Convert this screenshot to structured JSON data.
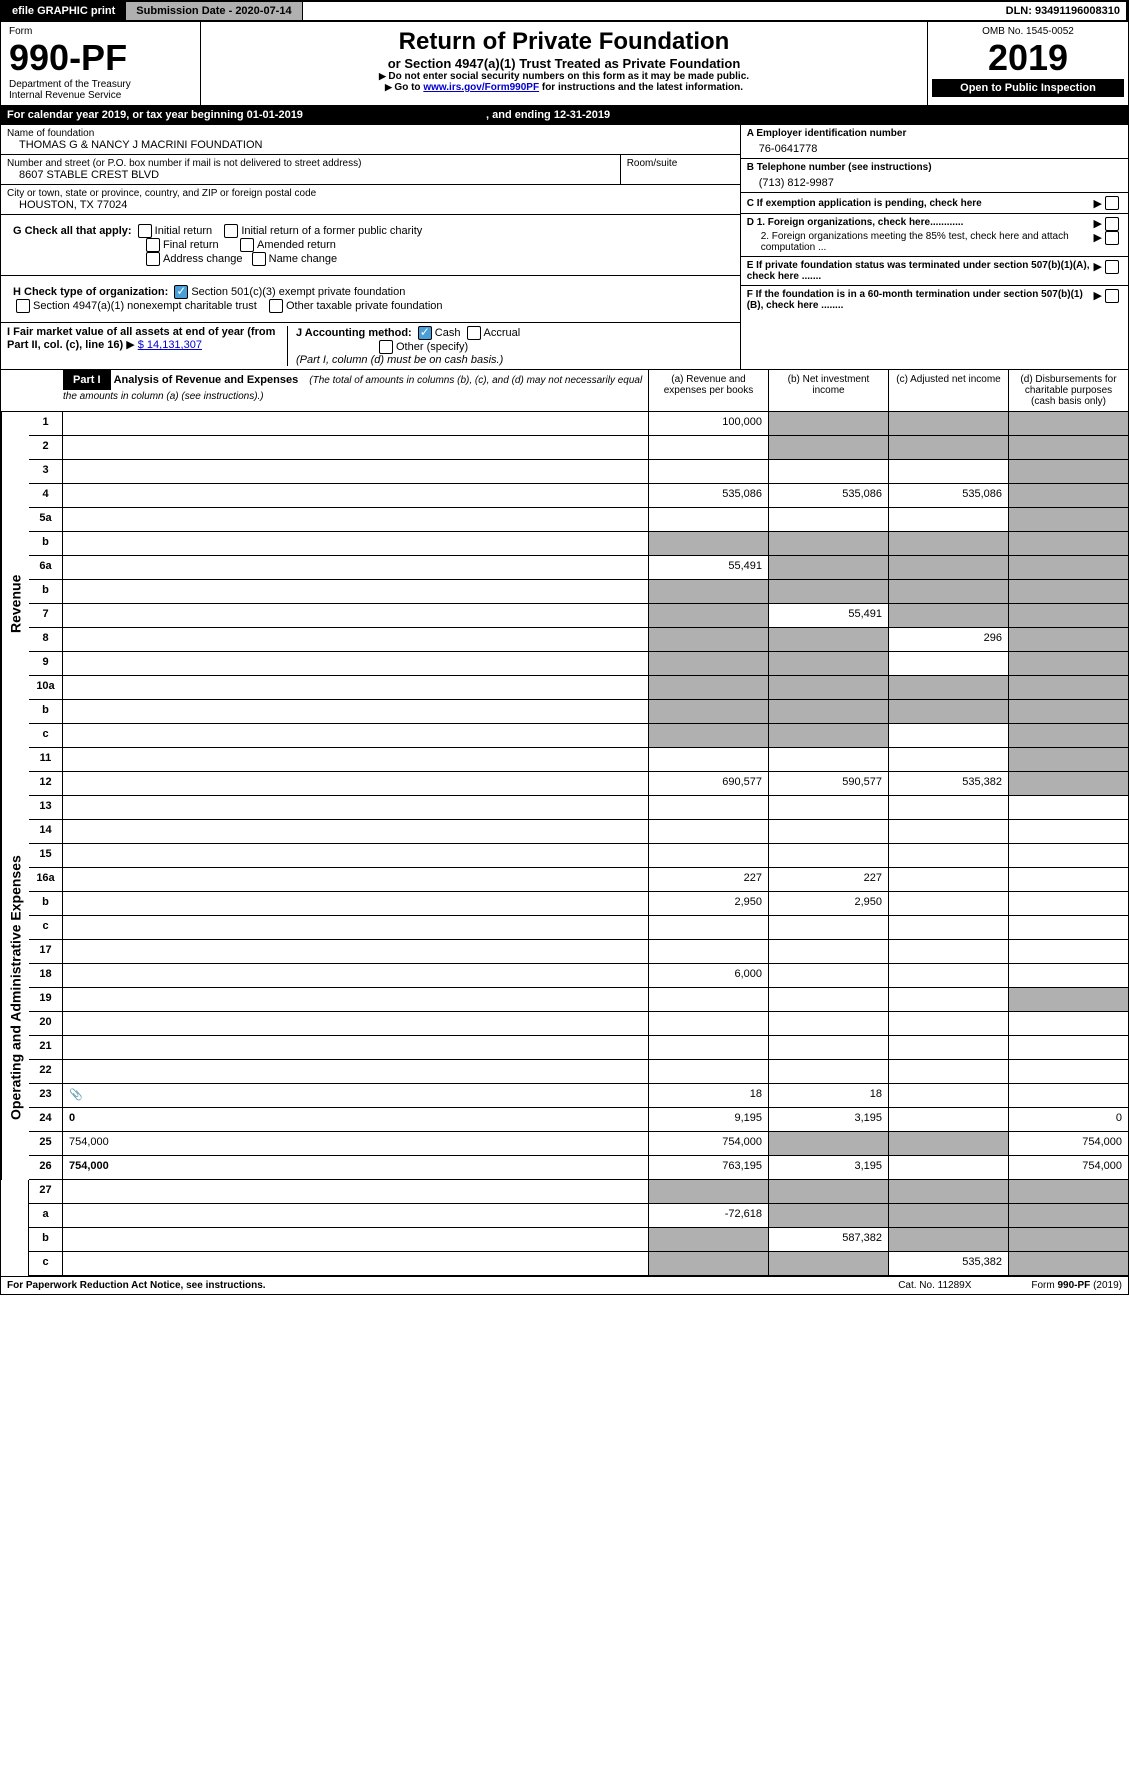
{
  "topbar": {
    "efile": "efile GRAPHIC print",
    "submission_label": "Submission Date - 2020-07-14",
    "dln": "DLN: 93491196008310"
  },
  "header": {
    "form_word": "Form",
    "form_number": "990-PF",
    "dept": "Department of the Treasury",
    "irs": "Internal Revenue Service",
    "title": "Return of Private Foundation",
    "subtitle": "or Section 4947(a)(1) Trust Treated as Private Foundation",
    "note1": "Do not enter social security numbers on this form as it may be made public.",
    "note2_prefix": "Go to ",
    "note2_link": "www.irs.gov/Form990PF",
    "note2_suffix": " for instructions and the latest information.",
    "omb": "OMB No. 1545-0052",
    "year": "2019",
    "open": "Open to Public Inspection"
  },
  "calyear": {
    "prefix": "For calendar year 2019, or tax year beginning ",
    "begin": "01-01-2019",
    "mid": " , and ending ",
    "end": "12-31-2019"
  },
  "foundation": {
    "name_label": "Name of foundation",
    "name": "THOMAS G & NANCY J MACRINI FOUNDATION",
    "addr_label": "Number and street (or P.O. box number if mail is not delivered to street address)",
    "addr": "8607 STABLE CREST BLVD",
    "room_label": "Room/suite",
    "city_label": "City or town, state or province, country, and ZIP or foreign postal code",
    "city": "HOUSTON, TX  77024"
  },
  "right_info": {
    "a_label": "A Employer identification number",
    "a_val": "76-0641778",
    "b_label": "B Telephone number (see instructions)",
    "b_val": "(713) 812-9987",
    "c_label": "C If exemption application is pending, check here",
    "d1": "D 1. Foreign organizations, check here............",
    "d2": "2. Foreign organizations meeting the 85% test, check here and attach computation ...",
    "e": "E  If private foundation status was terminated under section 507(b)(1)(A), check here .......",
    "f": "F  If the foundation is in a 60-month termination under section 507(b)(1)(B), check here ........"
  },
  "checks": {
    "g_label": "G Check all that apply:",
    "initial": "Initial return",
    "initial_former": "Initial return of a former public charity",
    "final": "Final return",
    "amended": "Amended return",
    "addr_change": "Address change",
    "name_change": "Name change",
    "h_label": "H Check type of organization:",
    "h1": "Section 501(c)(3) exempt private foundation",
    "h2": "Section 4947(a)(1) nonexempt charitable trust",
    "h3": "Other taxable private foundation",
    "i_label": "I Fair market value of all assets at end of year (from Part II, col. (c), line 16)",
    "i_val": "$  14,131,307",
    "j_label": "J Accounting method:",
    "j_cash": "Cash",
    "j_accrual": "Accrual",
    "j_other": "Other (specify)",
    "j_note": "(Part I, column (d) must be on cash basis.)"
  },
  "part1": {
    "label": "Part I",
    "title": "Analysis of Revenue and Expenses",
    "title_note": "(The total of amounts in columns (b), (c), and (d) may not necessarily equal the amounts in column (a) (see instructions).)",
    "col_a": "(a)   Revenue and expenses per books",
    "col_b": "(b)  Net investment income",
    "col_c": "(c)  Adjusted net income",
    "col_d": "(d)  Disbursements for charitable purposes (cash basis only)"
  },
  "revenue_label": "Revenue",
  "expense_label": "Operating and Administrative Expenses",
  "rows": [
    {
      "n": "1",
      "d": "",
      "a": "100,000",
      "b": "",
      "c": "",
      "gb": true,
      "gc": true,
      "gd": true
    },
    {
      "n": "2",
      "d": "",
      "a": "",
      "b": "",
      "c": "",
      "gb": true,
      "gc": true,
      "gd": true,
      "bold_parts": true
    },
    {
      "n": "3",
      "d": "",
      "a": "",
      "b": "",
      "c": "",
      "gd": true
    },
    {
      "n": "4",
      "d": "",
      "a": "535,086",
      "b": "535,086",
      "c": "535,086",
      "gd": true
    },
    {
      "n": "5a",
      "d": "",
      "a": "",
      "b": "",
      "c": "",
      "gd": true
    },
    {
      "n": "b",
      "d": "",
      "a": "",
      "b": "",
      "c": "",
      "ga": true,
      "gb": true,
      "gc": true,
      "gd": true
    },
    {
      "n": "6a",
      "d": "",
      "a": "55,491",
      "b": "",
      "c": "",
      "gb": true,
      "gc": true,
      "gd": true
    },
    {
      "n": "b",
      "d": "",
      "a": "",
      "b": "",
      "c": "",
      "ga": true,
      "gb": true,
      "gc": true,
      "gd": true
    },
    {
      "n": "7",
      "d": "",
      "a": "",
      "b": "55,491",
      "c": "",
      "ga": true,
      "gc": true,
      "gd": true
    },
    {
      "n": "8",
      "d": "",
      "a": "",
      "b": "",
      "c": "296",
      "ga": true,
      "gb": true,
      "gd": true
    },
    {
      "n": "9",
      "d": "",
      "a": "",
      "b": "",
      "c": "",
      "ga": true,
      "gb": true,
      "gd": true
    },
    {
      "n": "10a",
      "d": "",
      "a": "",
      "b": "",
      "c": "",
      "ga": true,
      "gb": true,
      "gc": true,
      "gd": true
    },
    {
      "n": "b",
      "d": "",
      "a": "",
      "b": "",
      "c": "",
      "ga": true,
      "gb": true,
      "gc": true,
      "gd": true
    },
    {
      "n": "c",
      "d": "",
      "a": "",
      "b": "",
      "c": "",
      "ga": true,
      "gb": true,
      "gd": true
    },
    {
      "n": "11",
      "d": "",
      "a": "",
      "b": "",
      "c": "",
      "gd": true
    },
    {
      "n": "12",
      "d": "",
      "a": "690,577",
      "b": "590,577",
      "c": "535,382",
      "gd": true,
      "bold": true
    }
  ],
  "exp_rows": [
    {
      "n": "13",
      "d": "",
      "a": "",
      "b": "",
      "c": ""
    },
    {
      "n": "14",
      "d": "",
      "a": "",
      "b": "",
      "c": ""
    },
    {
      "n": "15",
      "d": "",
      "a": "",
      "b": "",
      "c": ""
    },
    {
      "n": "16a",
      "d": "",
      "a": "227",
      "b": "227",
      "c": ""
    },
    {
      "n": "b",
      "d": "",
      "a": "2,950",
      "b": "2,950",
      "c": ""
    },
    {
      "n": "c",
      "d": "",
      "a": "",
      "b": "",
      "c": ""
    },
    {
      "n": "17",
      "d": "",
      "a": "",
      "b": "",
      "c": ""
    },
    {
      "n": "18",
      "d": "",
      "a": "6,000",
      "b": "",
      "c": ""
    },
    {
      "n": "19",
      "d": "",
      "a": "",
      "b": "",
      "c": "",
      "gd": true
    },
    {
      "n": "20",
      "d": "",
      "a": "",
      "b": "",
      "c": ""
    },
    {
      "n": "21",
      "d": "",
      "a": "",
      "b": "",
      "c": ""
    },
    {
      "n": "22",
      "d": "",
      "a": "",
      "b": "",
      "c": ""
    },
    {
      "n": "23",
      "d": "",
      "a": "18",
      "b": "18",
      "c": "",
      "icon": true
    },
    {
      "n": "24",
      "d": "0",
      "a": "9,195",
      "b": "3,195",
      "c": "",
      "bold": true
    },
    {
      "n": "25",
      "d": "754,000",
      "a": "754,000",
      "b": "",
      "c": "",
      "gb": true,
      "gc": true
    },
    {
      "n": "26",
      "d": "754,000",
      "a": "763,195",
      "b": "3,195",
      "c": "",
      "bold": true
    }
  ],
  "final_rows": [
    {
      "n": "27",
      "d": "",
      "a": "",
      "b": "",
      "c": "",
      "ga": true,
      "gb": true,
      "gc": true,
      "gd": true
    },
    {
      "n": "a",
      "d": "",
      "a": "-72,618",
      "b": "",
      "c": "",
      "gb": true,
      "gc": true,
      "gd": true,
      "bold": true
    },
    {
      "n": "b",
      "d": "",
      "a": "",
      "b": "587,382",
      "c": "",
      "ga": true,
      "gc": true,
      "gd": true,
      "bold": true
    },
    {
      "n": "c",
      "d": "",
      "a": "",
      "b": "",
      "c": "535,382",
      "ga": true,
      "gb": true,
      "gd": true,
      "bold": true
    }
  ],
  "footer": {
    "left": "For Paperwork Reduction Act Notice, see instructions.",
    "mid": "Cat. No. 11289X",
    "right": "Form 990-PF (2019)"
  }
}
